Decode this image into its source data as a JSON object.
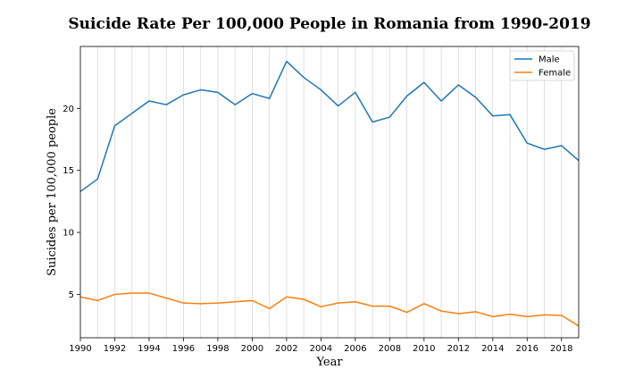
{
  "chart_data": {
    "type": "line",
    "title": "Suicide Rate Per 100,000 People in Romania from 1990-2019",
    "xlabel": "Year",
    "ylabel": "Suicides per 100,000 people",
    "xlim": [
      1990,
      2019
    ],
    "ylim": [
      1.5,
      25.0
    ],
    "x_ticks": [
      1990,
      1992,
      1994,
      1996,
      1998,
      2000,
      2002,
      2004,
      2006,
      2008,
      2010,
      2012,
      2014,
      2016,
      2018
    ],
    "y_ticks": [
      5,
      10,
      15,
      20
    ],
    "grid": "vertical",
    "legend_position": "top-right",
    "x": [
      1990,
      1991,
      1992,
      1993,
      1994,
      1995,
      1996,
      1997,
      1998,
      1999,
      2000,
      2001,
      2002,
      2003,
      2004,
      2005,
      2006,
      2007,
      2008,
      2009,
      2010,
      2011,
      2012,
      2013,
      2014,
      2015,
      2016,
      2017,
      2018,
      2019
    ],
    "series": [
      {
        "name": "Male",
        "color": "#1f77b4",
        "values": [
          13.3,
          14.3,
          18.6,
          19.6,
          20.6,
          20.3,
          21.1,
          21.5,
          21.3,
          20.3,
          21.2,
          20.8,
          23.8,
          22.5,
          21.5,
          20.2,
          21.3,
          18.9,
          19.3,
          21.0,
          22.1,
          20.6,
          21.9,
          20.9,
          19.4,
          19.5,
          17.2,
          16.7,
          17.0,
          15.8
        ]
      },
      {
        "name": "Female",
        "color": "#ff7f0e",
        "values": [
          4.8,
          4.5,
          5.0,
          5.1,
          5.1,
          4.7,
          4.3,
          4.25,
          4.3,
          4.4,
          4.5,
          3.85,
          4.8,
          4.6,
          4.0,
          4.3,
          4.4,
          4.05,
          4.05,
          3.55,
          4.25,
          3.65,
          3.45,
          3.6,
          3.2,
          3.4,
          3.2,
          3.35,
          3.3,
          2.45
        ]
      }
    ]
  }
}
